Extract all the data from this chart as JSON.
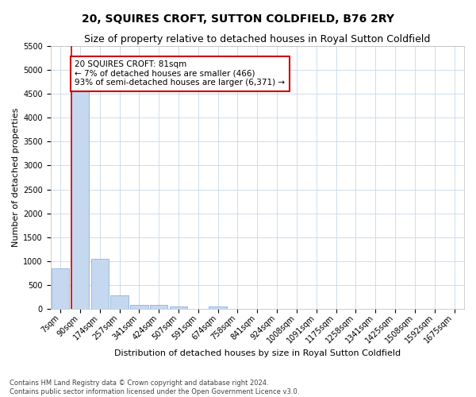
{
  "title": "20, SQUIRES CROFT, SUTTON COLDFIELD, B76 2RY",
  "subtitle": "Size of property relative to detached houses in Royal Sutton Coldfield",
  "xlabel": "Distribution of detached houses by size in Royal Sutton Coldfield",
  "ylabel": "Number of detached properties",
  "footer_line1": "Contains HM Land Registry data © Crown copyright and database right 2024.",
  "footer_line2": "Contains public sector information licensed under the Open Government Licence v3.0.",
  "annotation_line1": "20 SQUIRES CROFT: 81sqm",
  "annotation_line2": "← 7% of detached houses are smaller (466)",
  "annotation_line3": "93% of semi-detached houses are larger (6,371) →",
  "bar_color": "#c5d8f0",
  "bar_edge_color": "#7aa8d4",
  "marker_color": "#cc0000",
  "categories": [
    "7sqm",
    "90sqm",
    "174sqm",
    "257sqm",
    "341sqm",
    "424sqm",
    "507sqm",
    "591sqm",
    "674sqm",
    "758sqm",
    "841sqm",
    "924sqm",
    "1008sqm",
    "1091sqm",
    "1175sqm",
    "1258sqm",
    "1341sqm",
    "1425sqm",
    "1508sqm",
    "1592sqm",
    "1675sqm"
  ],
  "values": [
    850,
    4600,
    1050,
    290,
    90,
    75,
    50,
    0,
    55,
    0,
    0,
    0,
    0,
    0,
    0,
    0,
    0,
    0,
    0,
    0,
    0
  ],
  "ylim": [
    0,
    5500
  ],
  "yticks": [
    0,
    500,
    1000,
    1500,
    2000,
    2500,
    3000,
    3500,
    4000,
    4500,
    5000,
    5500
  ],
  "background_color": "#ffffff",
  "grid_color": "#c8d8e8",
  "title_fontsize": 10,
  "subtitle_fontsize": 9,
  "xlabel_fontsize": 8,
  "ylabel_fontsize": 8,
  "tick_fontsize": 7,
  "footer_fontsize": 6,
  "annotation_fontsize": 7.5,
  "annotation_box_color": "#ffffff",
  "annotation_box_edge": "#cc0000"
}
